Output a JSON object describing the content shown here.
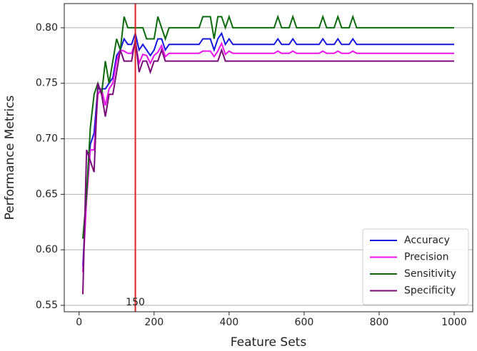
{
  "chart_data": {
    "type": "line",
    "x_label": "Feature Sets",
    "y_label": "Performance Metrics",
    "x": [
      10,
      20,
      30,
      40,
      50,
      60,
      70,
      80,
      90,
      100,
      110,
      120,
      130,
      140,
      150,
      160,
      170,
      180,
      190,
      200,
      210,
      220,
      230,
      240,
      320,
      330,
      340,
      350,
      360,
      370,
      380,
      390,
      400,
      410,
      520,
      530,
      540,
      560,
      570,
      580,
      640,
      650,
      660,
      680,
      690,
      700,
      720,
      730,
      740,
      1000
    ],
    "series": [
      {
        "name": "Accuracy",
        "color": "#1515e0",
        "values": [
          0.585,
          0.65,
          0.695,
          0.705,
          0.745,
          0.745,
          0.745,
          0.75,
          0.755,
          0.775,
          0.78,
          0.79,
          0.785,
          0.785,
          0.795,
          0.78,
          0.785,
          0.78,
          0.775,
          0.78,
          0.79,
          0.79,
          0.78,
          0.785,
          0.785,
          0.79,
          0.79,
          0.79,
          0.78,
          0.79,
          0.795,
          0.785,
          0.79,
          0.785,
          0.785,
          0.79,
          0.785,
          0.785,
          0.79,
          0.785,
          0.785,
          0.79,
          0.785,
          0.785,
          0.79,
          0.785,
          0.785,
          0.79,
          0.785,
          0.785
        ]
      },
      {
        "name": "Precision",
        "color": "#ee10ee",
        "values": [
          0.58,
          0.645,
          0.69,
          0.69,
          0.74,
          0.745,
          0.73,
          0.745,
          0.75,
          0.77,
          0.78,
          0.779,
          0.777,
          0.777,
          0.787,
          0.768,
          0.776,
          0.775,
          0.768,
          0.775,
          0.778,
          0.784,
          0.774,
          0.777,
          0.777,
          0.779,
          0.779,
          0.779,
          0.774,
          0.779,
          0.786,
          0.776,
          0.779,
          0.777,
          0.777,
          0.779,
          0.777,
          0.777,
          0.779,
          0.777,
          0.777,
          0.779,
          0.777,
          0.777,
          0.779,
          0.777,
          0.777,
          0.779,
          0.777,
          0.777
        ]
      },
      {
        "name": "Sensitivity",
        "color": "#0b6a0b",
        "values": [
          0.61,
          0.65,
          0.71,
          0.74,
          0.75,
          0.74,
          0.77,
          0.75,
          0.77,
          0.79,
          0.78,
          0.81,
          0.8,
          0.8,
          0.8,
          0.8,
          0.8,
          0.79,
          0.79,
          0.79,
          0.81,
          0.8,
          0.79,
          0.8,
          0.8,
          0.81,
          0.81,
          0.81,
          0.79,
          0.81,
          0.81,
          0.8,
          0.81,
          0.8,
          0.8,
          0.81,
          0.8,
          0.8,
          0.81,
          0.8,
          0.8,
          0.81,
          0.8,
          0.8,
          0.81,
          0.8,
          0.8,
          0.81,
          0.8,
          0.8
        ]
      },
      {
        "name": "Specificity",
        "color": "#7a0a7a",
        "values": [
          0.56,
          0.69,
          0.68,
          0.67,
          0.75,
          0.74,
          0.72,
          0.74,
          0.74,
          0.76,
          0.78,
          0.77,
          0.77,
          0.77,
          0.79,
          0.76,
          0.77,
          0.77,
          0.76,
          0.77,
          0.77,
          0.78,
          0.77,
          0.77,
          0.77,
          0.77,
          0.77,
          0.77,
          0.77,
          0.77,
          0.78,
          0.77,
          0.77,
          0.77,
          0.77,
          0.77,
          0.77,
          0.77,
          0.77,
          0.77,
          0.77,
          0.77,
          0.77,
          0.77,
          0.77,
          0.77,
          0.77,
          0.77,
          0.77,
          0.77
        ]
      }
    ],
    "xlim": [
      -39.5,
      1049.5
    ],
    "xticks": [
      0,
      200,
      400,
      600,
      800,
      1000
    ],
    "ylim": [
      0.5442,
      0.8218
    ],
    "yticks": [
      0.55,
      {
        "value": 0.6,
        "label": "0.60"
      },
      0.65,
      {
        "value": 0.7,
        "label": "0.70"
      },
      0.75,
      {
        "value": 0.8,
        "label": "0.80"
      }
    ],
    "grid": "y",
    "legend": "lower right",
    "vline_x": 150,
    "vline_color": "#dd2222"
  }
}
